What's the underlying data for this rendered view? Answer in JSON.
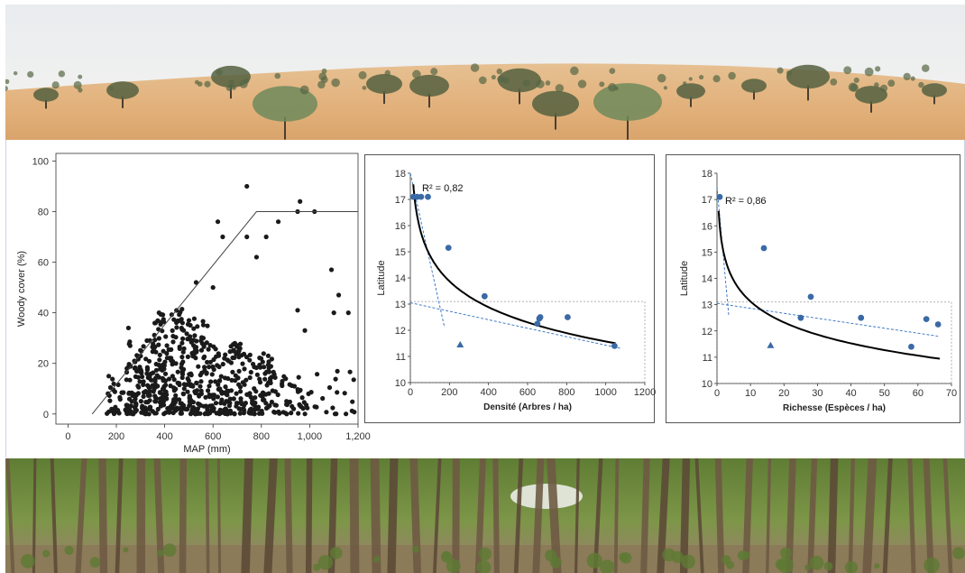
{
  "photos": {
    "top_scene": "sahel-savanna-dunes",
    "bottom_scene": "dense-woodland"
  },
  "colors": {
    "sand": "#e2b683",
    "sky": "#eef0f2",
    "tree": "#4d5a3a",
    "forest_canopy": "#6d8a3e",
    "forest_floor": "#8f7e59",
    "points_dark": "#1a1a1a",
    "points_blue": "#3a6aa6",
    "fit_line": "#000000",
    "dashed_blue": "#2f6fc0"
  },
  "chart_data": [
    {
      "id": "woody",
      "type": "scatter",
      "xlabel": "MAP (mm)",
      "ylabel": "Woody cover (%)",
      "xlim": [
        -50,
        1200
      ],
      "ylim": [
        -4,
        103
      ],
      "xticks": [
        0,
        200,
        400,
        600,
        800,
        1000,
        1200
      ],
      "xtick_labels": [
        "0",
        "200",
        "400",
        "600",
        "800",
        "1,000",
        "1,200"
      ],
      "yticks": [
        0,
        20,
        40,
        60,
        80,
        100
      ],
      "ytick_labels": [
        "0",
        "20",
        "40",
        "60",
        "80",
        "100"
      ],
      "envelope": [
        [
          100,
          0
        ],
        [
          780,
          80
        ],
        [
          1200,
          80
        ]
      ],
      "highlight_points": [
        [
          740,
          90
        ],
        [
          960,
          84
        ],
        [
          1020,
          80
        ],
        [
          950,
          80
        ],
        [
          820,
          70
        ],
        [
          870,
          76
        ],
        [
          620,
          76
        ],
        [
          640,
          70
        ],
        [
          740,
          70
        ],
        [
          780,
          62
        ],
        [
          1090,
          57
        ],
        [
          1120,
          47
        ],
        [
          1160,
          40
        ],
        [
          1100,
          40
        ],
        [
          250,
          34
        ],
        [
          560,
          30
        ],
        [
          600,
          50
        ],
        [
          530,
          52
        ],
        [
          980,
          33
        ],
        [
          950,
          41
        ]
      ],
      "cloud_regions": [
        {
          "x": [
            160,
            250
          ],
          "y": [
            0,
            20
          ],
          "n": 40
        },
        {
          "x": [
            250,
            350
          ],
          "y": [
            0,
            30
          ],
          "n": 110
        },
        {
          "x": [
            350,
            480
          ],
          "y": [
            0,
            42
          ],
          "n": 180
        },
        {
          "x": [
            480,
            600
          ],
          "y": [
            0,
            38
          ],
          "n": 130
        },
        {
          "x": [
            600,
            720
          ],
          "y": [
            0,
            28
          ],
          "n": 110
        },
        {
          "x": [
            720,
            850
          ],
          "y": [
            0,
            24
          ],
          "n": 90
        },
        {
          "x": [
            850,
            1000
          ],
          "y": [
            0,
            18
          ],
          "n": 45
        },
        {
          "x": [
            1000,
            1190
          ],
          "y": [
            0,
            18
          ],
          "n": 20
        }
      ]
    },
    {
      "id": "density",
      "type": "scatter",
      "xlabel": "Densité (Arbres / ha)",
      "ylabel": "Latitude",
      "xlim": [
        0,
        1200
      ],
      "ylim": [
        10,
        18
      ],
      "xticks": [
        0,
        200,
        400,
        600,
        800,
        1000,
        1200
      ],
      "yticks": [
        10,
        11,
        12,
        13,
        14,
        15,
        16,
        17,
        18
      ],
      "annotation": "R² = 0,82",
      "points": [
        [
          15,
          17.1
        ],
        [
          35,
          17.1
        ],
        [
          55,
          17.1
        ],
        [
          90,
          17.1
        ],
        [
          195,
          15.15
        ],
        [
          380,
          13.3
        ],
        [
          650,
          12.25
        ],
        [
          660,
          12.45
        ],
        [
          665,
          12.5
        ],
        [
          805,
          12.5
        ],
        [
          1045,
          11.4
        ]
      ],
      "triangle_points": [
        [
          255,
          11.45
        ]
      ],
      "fit_curve": {
        "a": 21.45,
        "b": -1.43,
        "x_from": 15,
        "x_to": 1050
      },
      "dashed_lines": [
        [
          [
            0,
            18
          ],
          [
            175,
            12.1
          ]
        ],
        [
          [
            0,
            13.05
          ],
          [
            1080,
            11.3
          ]
        ]
      ],
      "dashed_box": {
        "x1": 0,
        "x2": 1200,
        "y1": 10,
        "y2": 13.1
      }
    },
    {
      "id": "richness",
      "type": "scatter",
      "xlabel": "Richesse (Espèces / ha)",
      "ylabel": "Latitude",
      "xlim": [
        0,
        70
      ],
      "ylim": [
        10,
        18
      ],
      "xticks": [
        0,
        10,
        20,
        30,
        40,
        50,
        60,
        70
      ],
      "yticks": [
        10,
        11,
        12,
        13,
        14,
        15,
        16,
        17,
        18
      ],
      "annotation": "R² = 0,86",
      "points": [
        [
          0.8,
          17.1
        ],
        [
          14,
          15.15
        ],
        [
          25,
          12.5
        ],
        [
          28,
          13.3
        ],
        [
          43,
          12.5
        ],
        [
          58,
          11.4
        ],
        [
          62.5,
          12.45
        ],
        [
          66,
          12.25
        ]
      ],
      "triangle_points": [
        [
          16,
          11.45
        ]
      ],
      "fit_curve": {
        "a": 15.77,
        "b": -1.15,
        "x_from": 0.5,
        "x_to": 66.5
      },
      "dashed_lines": [
        [
          [
            0,
            17.5
          ],
          [
            3.5,
            12.6
          ]
        ],
        [
          [
            0,
            13.05
          ],
          [
            66,
            11.8
          ]
        ]
      ],
      "dashed_box": {
        "x1": 0,
        "x2": 70,
        "y1": 10,
        "y2": 13.1
      }
    }
  ]
}
